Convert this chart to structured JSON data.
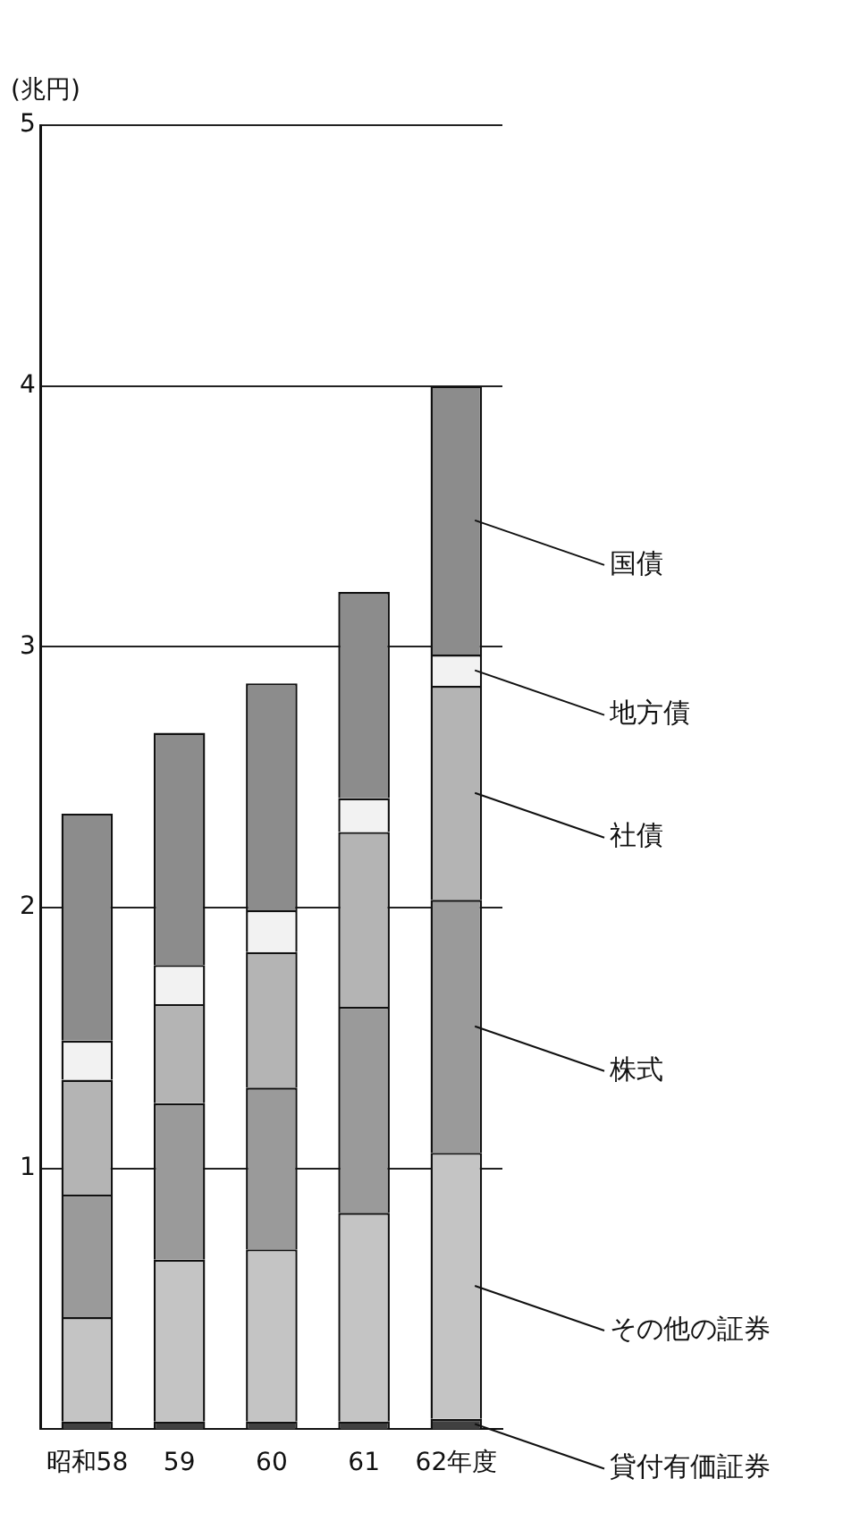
{
  "chart_data": {
    "type": "bar",
    "stacked": true,
    "ylabel": "(兆円)",
    "categories": [
      "昭和58",
      "59",
      "60",
      "61",
      "62年度"
    ],
    "ylim": [
      0,
      5
    ],
    "yticks": [
      1,
      2,
      3,
      4,
      5
    ],
    "grid": "y",
    "series": [
      {
        "name": "貸付有価証券",
        "color": "#404040",
        "values": [
          0.03,
          0.03,
          0.03,
          0.03,
          0.04
        ]
      },
      {
        "name": "その他の証券",
        "color": "#c4c4c4",
        "values": [
          0.4,
          0.62,
          0.66,
          0.8,
          1.02
        ]
      },
      {
        "name": "株式",
        "color": "#9a9a9a",
        "values": [
          0.47,
          0.6,
          0.62,
          0.79,
          0.97
        ]
      },
      {
        "name": "社債",
        "color": "#b4b4b4",
        "values": [
          0.44,
          0.38,
          0.52,
          0.67,
          0.82
        ]
      },
      {
        "name": "地方債",
        "color": "#f2f2f2",
        "values": [
          0.15,
          0.15,
          0.16,
          0.13,
          0.12
        ]
      },
      {
        "name": "国債",
        "color": "#8c8c8c",
        "values": [
          0.87,
          0.89,
          0.87,
          0.79,
          1.03
        ]
      }
    ]
  }
}
